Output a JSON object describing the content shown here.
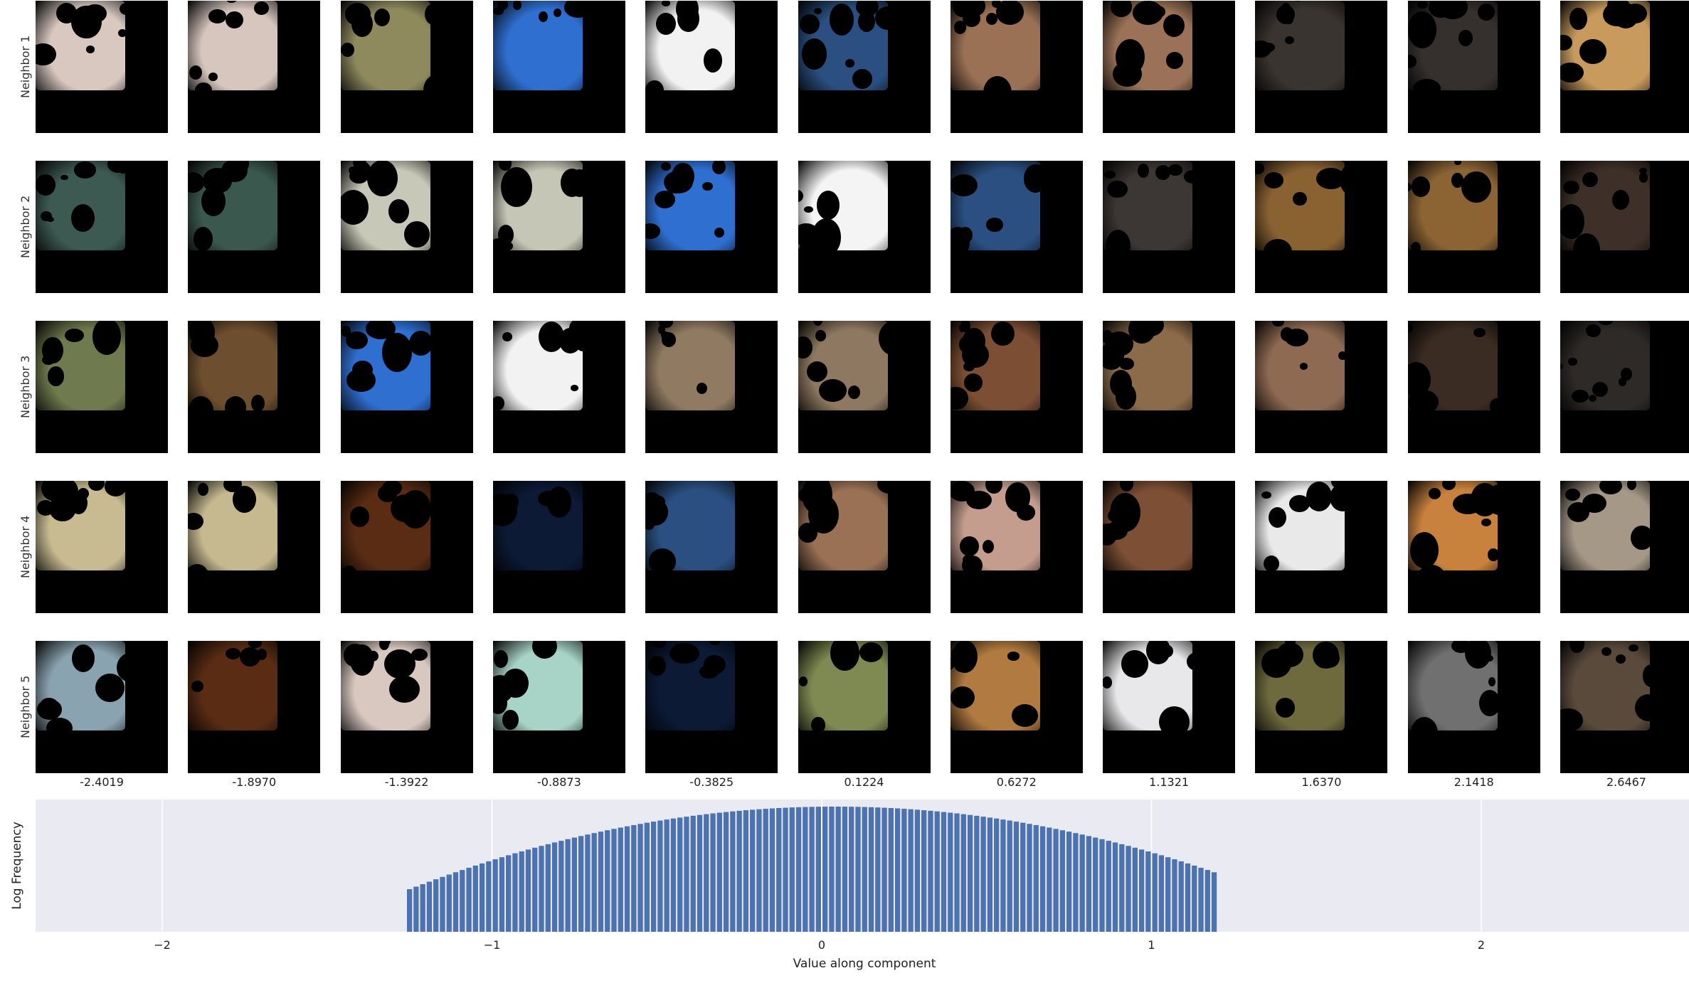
{
  "chart_data": {
    "type": "bar",
    "row_labels": [
      "Neighbor 1",
      "Neighbor 2",
      "Neighbor 3",
      "Neighbor 4",
      "Neighbor 5"
    ],
    "column_values": [
      "-2.4019",
      "-1.8970",
      "-1.3922",
      "-0.8873",
      "-0.3825",
      "0.1224",
      "0.6272",
      "1.1321",
      "1.6370",
      "2.1418",
      "2.6467"
    ],
    "neighbor_patch_colors": [
      [
        "#d9c8c0",
        "#d6c6be",
        "#8e8a5e",
        "#2f6fd0",
        "#f2f2f2",
        "#2a4f80",
        "#9a7155",
        "#9b7257",
        "#3a3431",
        "#35302e",
        "#c89a5c"
      ],
      [
        "#3d5a52",
        "#3b584f",
        "#c8c8b8",
        "#c6c6b6",
        "#2f6fd0",
        "#f4f4f4",
        "#2a4f80",
        "#3c3634",
        "#8a6232",
        "#8c6434",
        "#3e3028"
      ],
      [
        "#6f7a4e",
        "#6d4e2e",
        "#2f6fd0",
        "#f2f2f2",
        "#907a62",
        "#8e7861",
        "#7c4e34",
        "#8c6b4a",
        "#8f6a52",
        "#3a2c22",
        "#2e2a28"
      ],
      [
        "#c8bb92",
        "#c6b990",
        "#5a2c14",
        "#0c1a36",
        "#2a4f80",
        "#9a7155",
        "#c59d8e",
        "#7d4f35",
        "#e9e9ea",
        "#c9823d",
        "#a59886"
      ],
      [
        "#8aa3b0",
        "#5a2c14",
        "#d9c8c0",
        "#a8d4c8",
        "#0c1a36",
        "#7e8a52",
        "#b07a40",
        "#e8e8ea",
        "#6e6a3e",
        "#707070",
        "#5a4a3c"
      ]
    ],
    "histogram": {
      "xlabel": "Value along component",
      "ylabel": "Log Frequency",
      "xlim": [
        -2.4,
        2.6
      ],
      "xticks": [
        -2,
        -1,
        0,
        1,
        2
      ],
      "xtick_labels": [
        "−2",
        "−1",
        "0",
        "1",
        "2"
      ],
      "grid": true,
      "bar_color": "#4c72b0",
      "background": "#eaeaf2",
      "bin_width": 0.02,
      "bins_start": -1.26,
      "mean": 0.04,
      "sd": 0.34
    }
  }
}
